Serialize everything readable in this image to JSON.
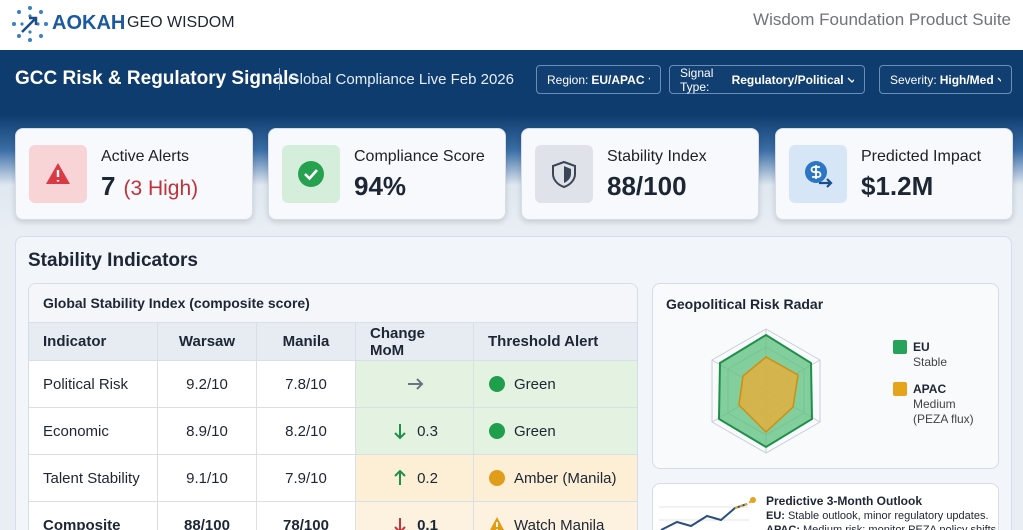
{
  "header": {
    "brand": "AOKAH",
    "brand_sub": "GEO WISDOM",
    "suite": "Wisdom Foundation Product Suite"
  },
  "toolbar": {
    "title": "GCC Risk & Regulatory Signals",
    "subtitle": "Global Compliance Live Feb 2026",
    "filters": [
      {
        "label": "Region:",
        "value": "EU/APAC"
      },
      {
        "label": "Signal Type:",
        "value": "Regulatory/Political"
      },
      {
        "label": "Severity:",
        "value": "High/Med"
      }
    ]
  },
  "kpis": [
    {
      "label": "Active Alerts",
      "value": "7",
      "note": "(3 High)",
      "icon": "alert"
    },
    {
      "label": "Compliance Score",
      "value": "94%",
      "icon": "check"
    },
    {
      "label": "Stability Index",
      "value": "88/100",
      "icon": "shield"
    },
    {
      "label": "Predicted Impact",
      "value": "$1.2M",
      "icon": "impact"
    }
  ],
  "panel": {
    "title": "Stability Indicators"
  },
  "table": {
    "title": "Global Stability Index (composite score)",
    "columns": [
      "Indicator",
      "Warsaw",
      "Manila",
      "Change MoM",
      "Threshold Alert"
    ],
    "rows": [
      {
        "cells": [
          "Political Risk",
          "9.2/10",
          "7.8/10"
        ],
        "trend": "flat",
        "alert": {
          "status": "green",
          "text": "Green"
        }
      },
      {
        "cells": [
          "Economic",
          "8.9/10",
          "8.2/10"
        ],
        "trend": "down",
        "change": "0.3",
        "alert": {
          "status": "green",
          "text": "Green"
        }
      },
      {
        "cells": [
          "Talent Stability",
          "9.1/10",
          "7.9/10"
        ],
        "trend": "up",
        "change": "0.2",
        "alert": {
          "status": "amber",
          "text": "Amber (Manila)"
        }
      },
      {
        "cells": [
          "Composite",
          "88/100",
          "78/100"
        ],
        "trend": "down",
        "change": "0.1",
        "alert": {
          "status": "warning",
          "text": "Watch Manila"
        },
        "bold": true
      }
    ]
  },
  "radar": {
    "title": "Geopolitical Risk Radar",
    "legend": [
      {
        "name": "EU",
        "note": "Stable",
        "color": "#27a25a"
      },
      {
        "name": "APAC",
        "note": "Medium (PEZA flux)",
        "color": "#e6a31c"
      }
    ]
  },
  "outlook": {
    "title": "Predictive 3-Month Outlook",
    "lines": [
      {
        "label": "EU:",
        "text": "Stable outlook, minor regulatory updates."
      },
      {
        "label": "APAC:",
        "text": "Medium risk; monitor PEZA policy shifts"
      }
    ]
  }
}
